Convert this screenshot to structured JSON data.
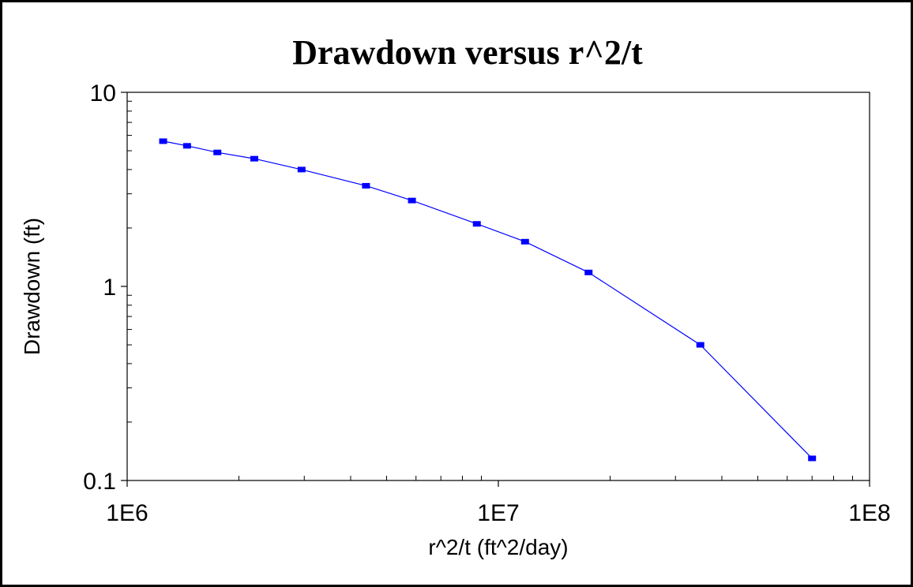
{
  "chart_data": {
    "type": "line",
    "title": "Drawdown versus r^2/t",
    "xlabel": "r^2/t (ft^2/day)",
    "ylabel": "Drawdown (ft)",
    "xscale": "log",
    "yscale": "log",
    "xlim": [
      1000000,
      100000000
    ],
    "ylim": [
      0.1,
      10
    ],
    "x_ticks": [
      1000000,
      10000000,
      100000000
    ],
    "x_tick_labels": [
      "1E6",
      "1E7",
      "1E8"
    ],
    "y_ticks": [
      0.1,
      1,
      10
    ],
    "y_tick_labels": [
      "0.1",
      "1",
      "10"
    ],
    "grid": false,
    "legend": "none",
    "series": [
      {
        "color": "#0000ff",
        "marker": "square",
        "x": [
          1250000,
          1450000,
          1750000,
          2200000,
          2950000,
          4400000,
          5850000,
          8750000,
          11800000,
          17500000,
          35000000,
          70000000
        ],
        "y": [
          5.6,
          5.3,
          4.9,
          4.55,
          4.0,
          3.3,
          2.77,
          2.1,
          1.7,
          1.18,
          0.5,
          0.13
        ]
      }
    ]
  }
}
